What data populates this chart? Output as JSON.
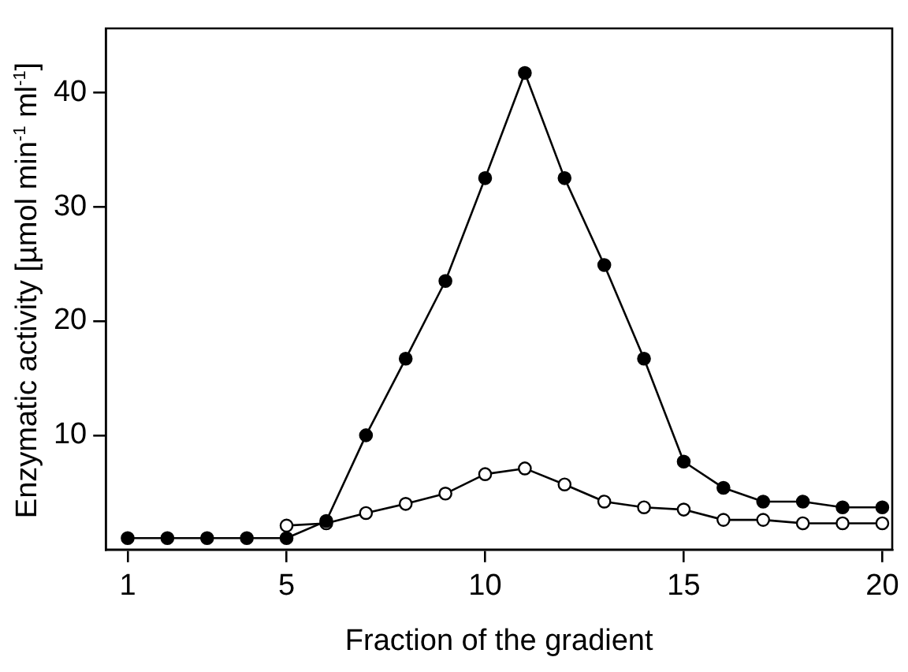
{
  "chart_data": {
    "type": "line",
    "xlabel": "Fraction of the gradient",
    "ylabel": "Enzymatic activity [µmol min$^{-1}$ ml$^{-1}$]",
    "x": [
      1,
      2,
      3,
      4,
      5,
      6,
      7,
      8,
      9,
      10,
      11,
      12,
      13,
      14,
      15,
      16,
      17,
      18,
      19,
      20
    ],
    "series": [
      {
        "color": "#000000",
        "values": [
          1.0,
          1.0,
          1.0,
          1.0,
          1.0,
          2.5,
          10.0,
          16.7,
          23.5,
          32.5,
          41.7,
          32.5,
          24.9,
          16.7,
          7.7,
          5.4,
          4.2,
          4.2,
          3.7,
          3.7
        ]
      },
      {
        "color": "#ffffff",
        "values": [
          null,
          null,
          null,
          null,
          2.1,
          2.3,
          3.2,
          4.0,
          4.9,
          6.6,
          7.1,
          5.7,
          4.2,
          3.7,
          3.5,
          2.6,
          2.6,
          2.3,
          2.3,
          2.3
        ]
      }
    ],
    "xlim": [
      0.45,
      20.25
    ],
    "ylim": [
      0,
      45.6
    ],
    "xticks": [
      1,
      5,
      10,
      15,
      20
    ],
    "yticks": [
      10,
      20,
      30,
      40
    ],
    "grid": false,
    "legend": false,
    "marker": "circle",
    "line_style": "solid"
  }
}
